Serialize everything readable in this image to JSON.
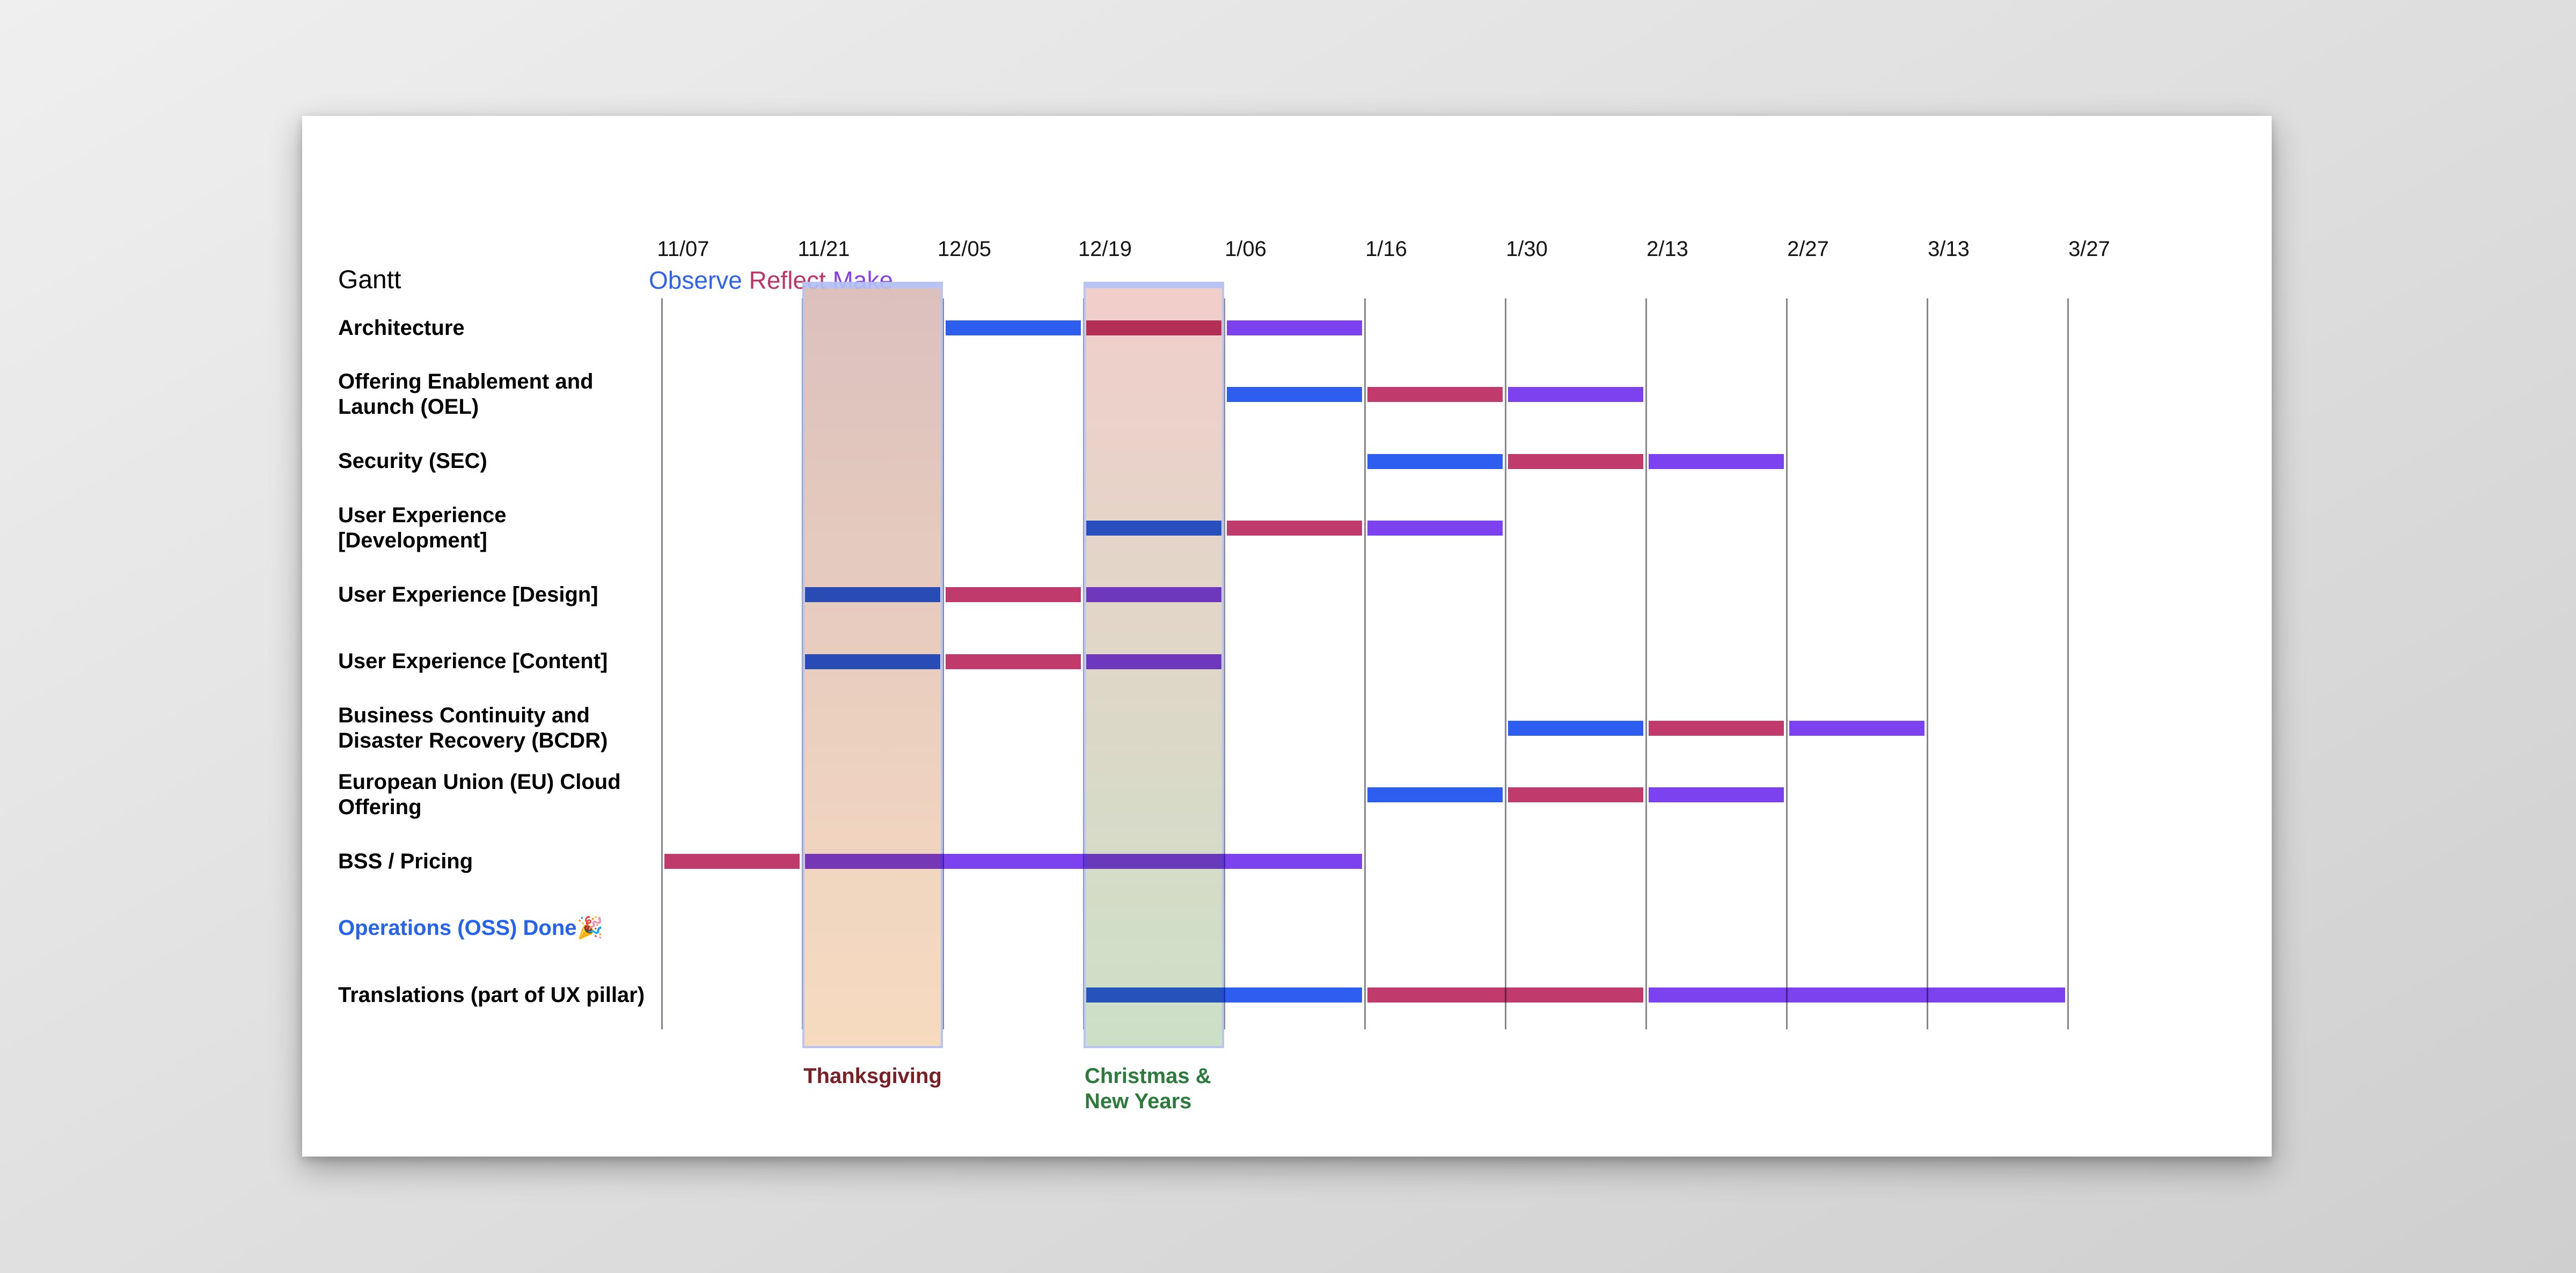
{
  "header": {
    "title": "Gantt",
    "legend": [
      {
        "label": "Observe",
        "color": "#2F63EA"
      },
      {
        "label": "Reflect",
        "color": "#BD3566"
      },
      {
        "label": "Make",
        "color": "#8540EF"
      }
    ]
  },
  "chart_data": {
    "type": "gantt",
    "timeline_ticks": [
      "11/07",
      "11/21",
      "12/05",
      "12/19",
      "1/06",
      "1/16",
      "1/30",
      "2/13",
      "2/27",
      "3/13",
      "3/27"
    ],
    "grid": "vertical-only",
    "phase_colors": {
      "Observe": "#2D5EF0",
      "Reflect": "#C03A6B",
      "Make": "#7C42EF"
    },
    "rows": [
      {
        "label": "Architecture",
        "label_color": "#000000",
        "segments": [
          {
            "phase": "Observe",
            "start": 2,
            "end": 3
          },
          {
            "phase": "Reflect",
            "start": 3,
            "end": 4
          },
          {
            "phase": "Make",
            "start": 4,
            "end": 5
          }
        ]
      },
      {
        "label": "Offering Enablement and Launch (OEL)",
        "label_color": "#000000",
        "segments": [
          {
            "phase": "Observe",
            "start": 4,
            "end": 5
          },
          {
            "phase": "Reflect",
            "start": 5,
            "end": 6
          },
          {
            "phase": "Make",
            "start": 6,
            "end": 7
          }
        ]
      },
      {
        "label": "Security (SEC)",
        "label_color": "#000000",
        "segments": [
          {
            "phase": "Observe",
            "start": 5,
            "end": 6
          },
          {
            "phase": "Reflect",
            "start": 6,
            "end": 7
          },
          {
            "phase": "Make",
            "start": 7,
            "end": 8
          }
        ]
      },
      {
        "label": "User Experience [Development]",
        "label_color": "#000000",
        "segments": [
          {
            "phase": "Observe",
            "start": 3,
            "end": 4
          },
          {
            "phase": "Reflect",
            "start": 4,
            "end": 5
          },
          {
            "phase": "Make",
            "start": 5,
            "end": 6
          }
        ]
      },
      {
        "label": "User Experience [Design]",
        "label_color": "#000000",
        "segments": [
          {
            "phase": "Observe",
            "start": 1,
            "end": 2
          },
          {
            "phase": "Reflect",
            "start": 2,
            "end": 3
          },
          {
            "phase": "Make",
            "start": 3,
            "end": 4
          }
        ]
      },
      {
        "label": "User Experience [Content]",
        "label_color": "#000000",
        "segments": [
          {
            "phase": "Observe",
            "start": 1,
            "end": 2
          },
          {
            "phase": "Reflect",
            "start": 2,
            "end": 3
          },
          {
            "phase": "Make",
            "start": 3,
            "end": 4
          }
        ]
      },
      {
        "label": "Business Continuity and Disaster Recovery (BCDR)",
        "label_color": "#000000",
        "segments": [
          {
            "phase": "Observe",
            "start": 6,
            "end": 7
          },
          {
            "phase": "Reflect",
            "start": 7,
            "end": 8
          },
          {
            "phase": "Make",
            "start": 8,
            "end": 9
          }
        ]
      },
      {
        "label": "European Union (EU) Cloud Offering",
        "label_color": "#000000",
        "segments": [
          {
            "phase": "Observe",
            "start": 5,
            "end": 6
          },
          {
            "phase": "Reflect",
            "start": 6,
            "end": 7
          },
          {
            "phase": "Make",
            "start": 7,
            "end": 8
          }
        ]
      },
      {
        "label": "BSS / Pricing",
        "label_color": "#000000",
        "segments": [
          {
            "phase": "Reflect",
            "start": 0,
            "end": 1
          },
          {
            "phase": "Make",
            "start": 1,
            "end": 5
          }
        ]
      },
      {
        "label": "Operations (OSS) Done🎉",
        "label_color": "#2563EE",
        "segments": []
      },
      {
        "label": "Translations (part of UX pillar)",
        "label_color": "#000000",
        "segments": [
          {
            "phase": "Observe",
            "start": 3,
            "end": 5
          },
          {
            "phase": "Reflect",
            "start": 5,
            "end": 7
          },
          {
            "phase": "Make",
            "start": 7,
            "end": 10
          }
        ]
      }
    ],
    "bands": [
      {
        "label": "Thanksgiving",
        "start": 1,
        "end": 2,
        "fill_top": "#d9bcba",
        "fill_bottom": "#f7d9bc",
        "border_color": "#b2c0f4",
        "label_color": "#7A1F24",
        "label_align": "center"
      },
      {
        "label": "Christmas &\nNew Years",
        "start": 3,
        "end": 4,
        "fill_top": "#f1cbc6",
        "fill_bottom": "#c9dec3",
        "border_color": "#b2c0f4",
        "label_color": "#2C7A3C",
        "label_align": "left"
      }
    ]
  }
}
